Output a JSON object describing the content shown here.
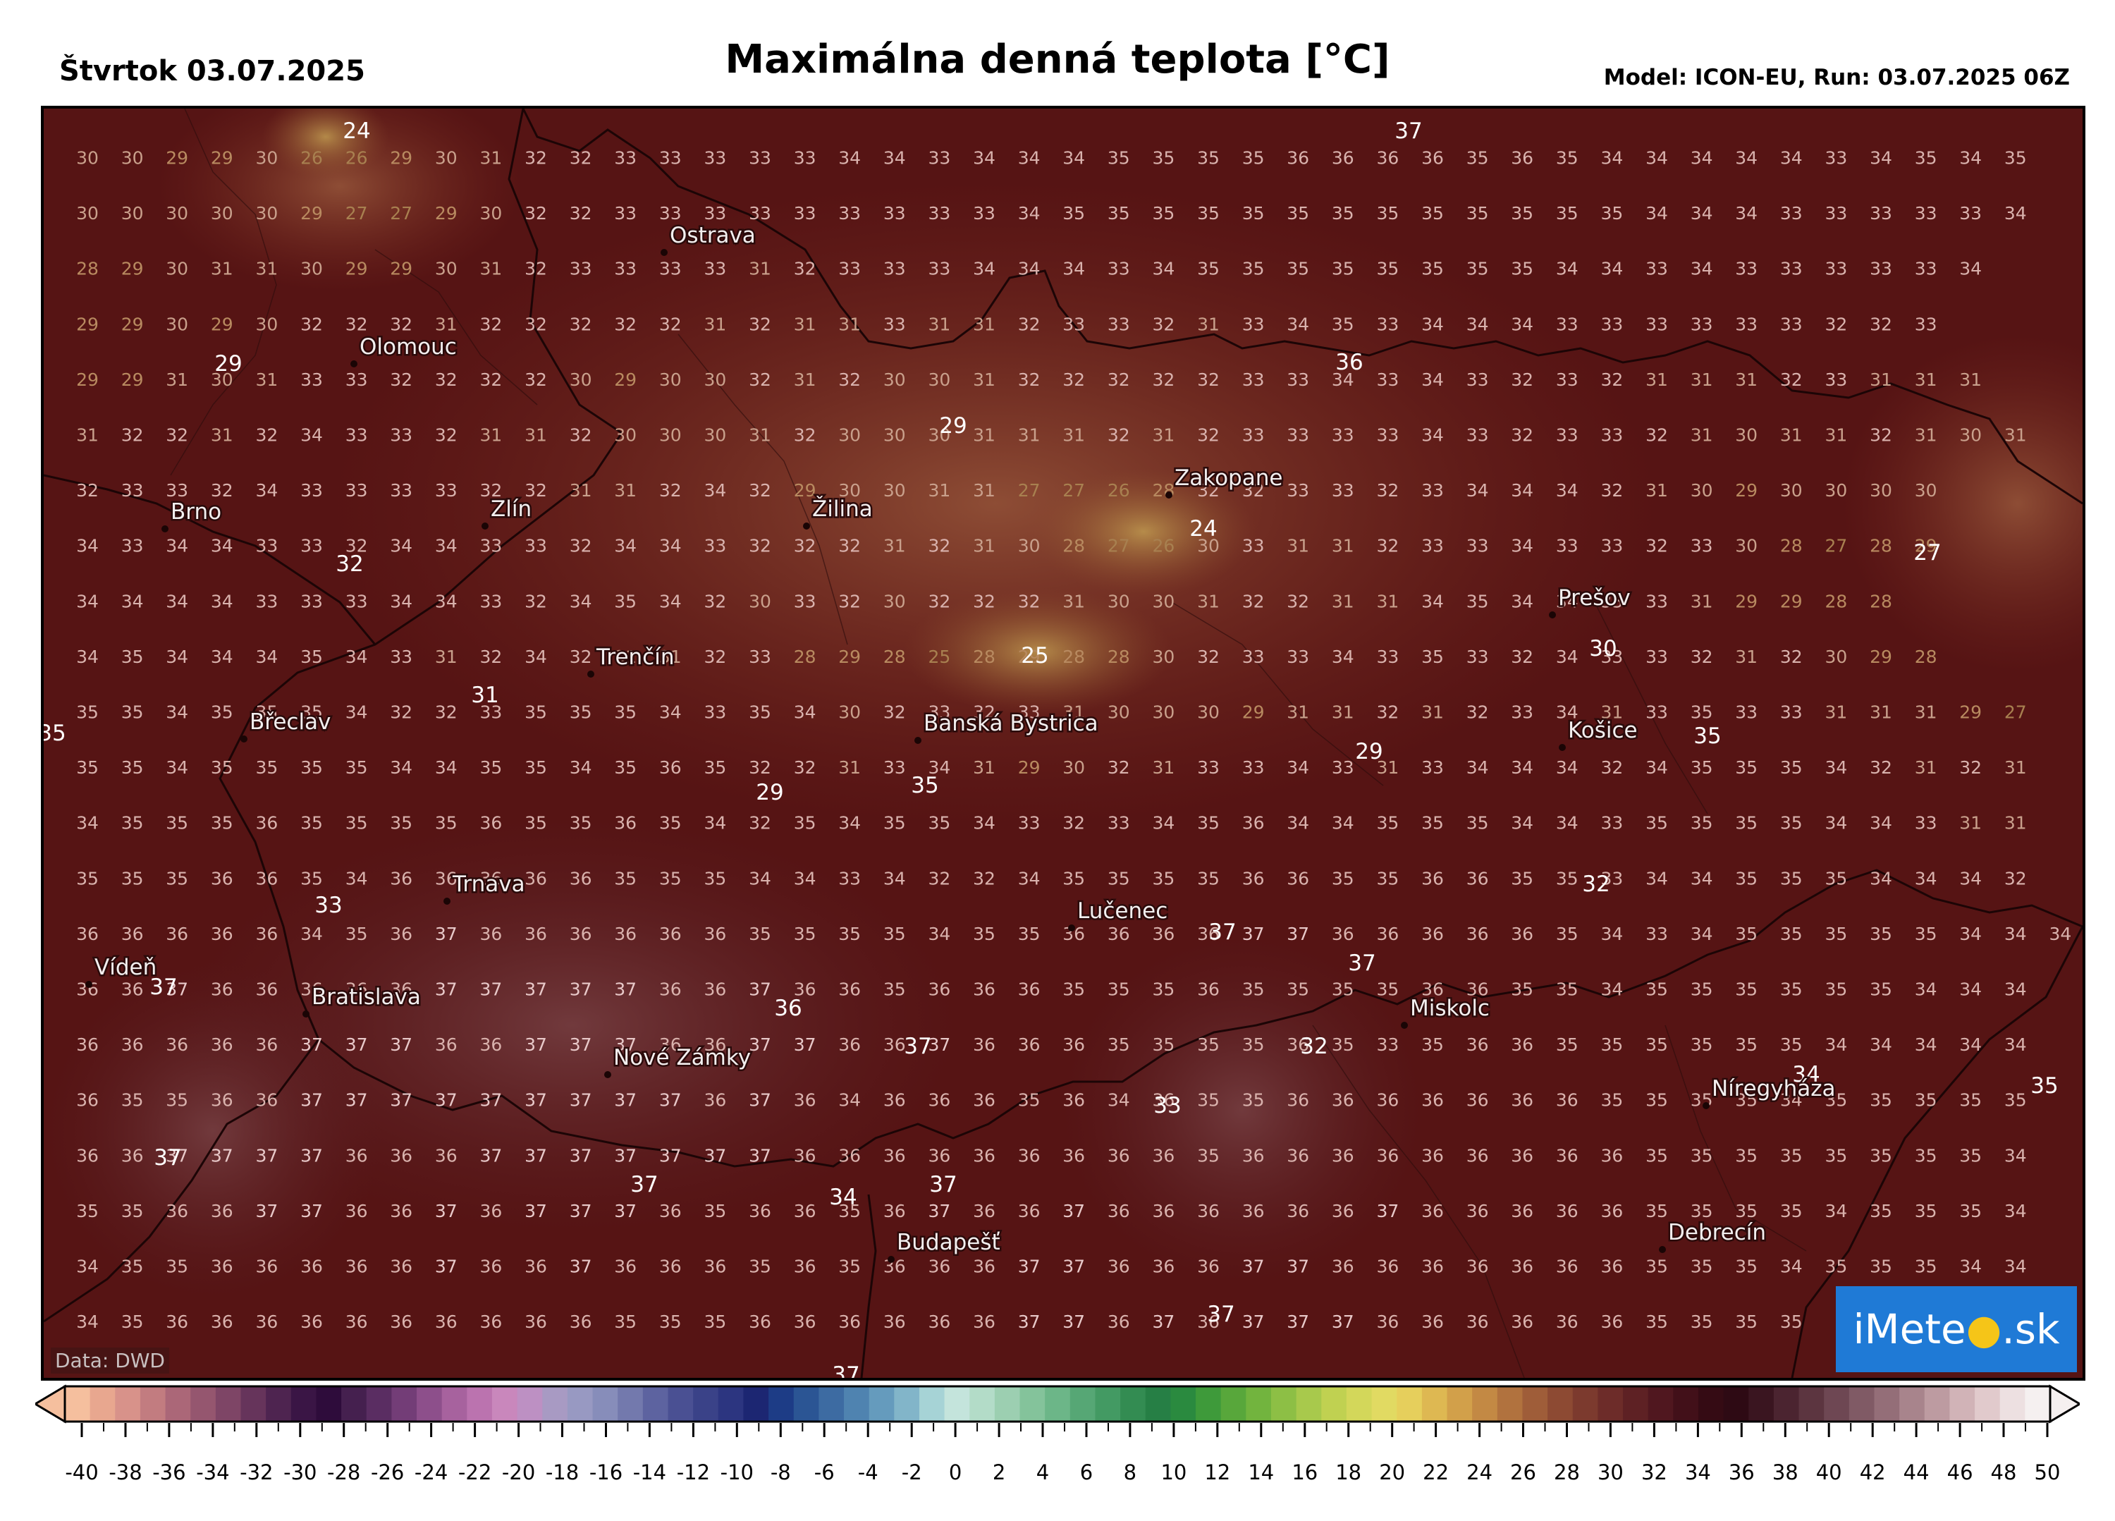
{
  "header": {
    "date": "Štvrtok 03.07.2025",
    "title": "Maximálna denná teplota [°C]",
    "model": "Model: ICON-EU, Run: 03.07.2025 06Z"
  },
  "map": {
    "data_source": "Data: DWD",
    "logo": {
      "left": "iMete",
      "sun": "●",
      "right": ".sk"
    },
    "grid_columns": 45,
    "grid_rows": [
      "30 30 29 29 30 26 26 29 30 31 32 32 33 33 33 33 33 34 34 33 34 34 34 35 35 35 35 36 36 36 36 35 36 35 34 34 34 34 34 33 34 35 34 35",
      "30 30 30 30 30 29 27 27 29 30 32 32 33 33 33 33 33 33 33 33 33 34 35 35 35 35 35 35 35 35 35 35 35 35 35 34 34 34 33 33 33 33 33 34",
      "28 29 30 31 31 30 29 29 30 31 32 33 33 33 33 31 32 33 33 33 34 34 34 33 34 35 35 35 35 35 35 35 35 34 34 33 34 33 33 33 33 33 34",
      "29 29 30 29 30 32 32 32 31 32 32 32 32 32 31 32 31 31 33 31 31 32 33 33 32 31 33 34 35 33 34 34 34 33 33 33 33 33 33 32 32 33",
      "29 29 31 30 31 33 33 32 32 32 32 30 29 30 30 32 31 32 30 30 31 32 32 32 32 32 33 33 34 33 34 33 32 33 32 31 31 31 32 33 31 31 31",
      "31 32 32 31 32 34 33 33 32 31 31 32 30 30 30 31 32 30 30 30 31 31 31 32 31 32 33 33 33 33 34 33 32 33 33 32 31 30 31 31 32 31 30 31",
      "32 33 33 32 34 33 33 33 33 32 32 31 31 32 34 32 29 30 30 31 31 27 27 26 28 32 32 33 33 32 33 34 34 34 32 31 30 29 30 30 30 30",
      "34 33 34 34 33 33 32 34 34 33 33 32 34 34 33 32 32 32 31 32 31 30 28 27 26 30 33 31 31 32 33 33 34 33 33 32 33 30 28 27 28 29",
      "34 34 34 34 33 33 33 34 34 33 32 34 35 34 32 30 33 32 30 32 32 32 31 30 30 31 32 32 31 31 34 35 34 34 33 33 31 29 29 28 28",
      "34 35 34 34 34 35 34 33 31 32 34 32 31 31 32 33 28 29 28 25 28 29 28 28 30 32 33 33 34 33 35 33 32 34 33 33 32 31 32 30 29 28",
      "35 35 34 35 35 35 34 32 32 33 35 35 35 34 33 35 34 30 32 33 32 33 31 30 30 30 29 31 31 32 31 32 33 34 31 33 35 33 33 31 31 31 29 27",
      "35 35 34 35 35 35 35 34 34 35 35 34 35 36 35 32 32 31 33 34 31 29 30 32 31 33 33 34 33 31 33 34 34 34 32 34 35 35 35 34 32 31 32 31",
      "34 35 35 35 36 35 35 35 35 36 35 35 36 35 34 32 35 34 35 35 34 33 32 33 34 35 36 34 34 35 35 35 34 34 33 35 35 35 35 34 34 33 31 31",
      "35 35 35 36 36 35 34 36 36 36 36 36 35 35 35 34 34 33 34 32 32 34 35 35 35 35 36 36 35 35 36 36 35 35 33 34 34 35 35 35 34 34 34 32",
      "36 36 36 36 36 34 35 36 37 36 36 36 36 36 36 35 35 35 35 34 35 35 36 36 36 36 37 37 36 36 36 36 36 35 34 33 34 35 35 35 35 35 34 34 34",
      "36 36 37 36 36 36 36 36 37 37 37 37 37 36 36 37 36 36 35 36 36 36 35 35 35 36 35 35 35 35 36 36 35 35 34 35 35 35 35 35 35 34 34 34",
      "36 36 36 36 36 37 37 37 36 36 37 37 37 36 36 37 37 36 36 37 36 36 36 35 35 35 35 36 35 33 35 36 36 35 35 35 35 35 35 34 34 34 34 34",
      "36 35 35 36 36 37 37 37 37 37 37 37 37 37 36 37 36 34 36 36 36 35 36 34 36 35 35 36 36 36 36 36 36 36 35 35 35 35 34 35 35 35 35 35",
      "36 36 37 37 37 37 36 36 36 37 37 37 37 37 37 37 36 36 36 36 36 36 36 36 36 35 36 36 36 36 36 36 36 36 36 35 35 35 35 35 35 35 35 34",
      "35 35 36 36 37 37 36 36 37 36 37 37 37 36 35 36 36 35 36 37 36 36 37 36 36 36 36 36 36 37 36 36 36 36 36 35 35 35 35 34 35 35 35 34",
      "34 35 35 36 36 36 36 36 37 36 36 37 36 36 36 35 36 35 36 36 36 37 37 36 36 36 37 37 36 36 36 36 36 36 36 35 35 35 34 35 35 35 34 34",
      "34 35 36 36 36 36 36 36 36 36 36 36 35 35 35 36 36 36 36 36 36 37 37 36 37 36 37 37 37 36 36 36 36 36 36 35 35 35 35"
    ],
    "callouts": [
      "24",
      "37",
      "36",
      "29",
      "29",
      "32",
      "31",
      "35",
      "25",
      "24",
      "27",
      "30",
      "29",
      "35",
      "35",
      "29",
      "33",
      "32",
      "37",
      "37",
      "36",
      "37",
      "37",
      "32",
      "34",
      "33",
      "37",
      "37",
      "34",
      "37",
      "35",
      "37",
      "37"
    ],
    "cities": [
      "Ostrava",
      "Olomouc",
      "Brno",
      "Zlín",
      "Žilina",
      "Zakopane",
      "Prešov",
      "Trenčín",
      "Břeclav",
      "Banská Bystrica",
      "Košice",
      "Trnava",
      "Lučenec",
      "Vídeň",
      "Bratislava",
      "Miskolc",
      "Nové Zámky",
      "Nírеgyháza",
      "Budapešť",
      "Debrecín"
    ]
  },
  "colorbar": {
    "ticks": [
      "-40",
      "-38",
      "-36",
      "-34",
      "-32",
      "-30",
      "-28",
      "-26",
      "-24",
      "-22",
      "-20",
      "-18",
      "-16",
      "-14",
      "-12",
      "-10",
      "-8",
      "-6",
      "-4",
      "-2",
      "0",
      "2",
      "4",
      "6",
      "8",
      "10",
      "12",
      "14",
      "16",
      "18",
      "20",
      "22",
      "24",
      "26",
      "28",
      "30",
      "32",
      "34",
      "36",
      "38",
      "40",
      "42",
      "44",
      "46",
      "48",
      "50"
    ],
    "colors": [
      "#f5bf9e",
      "#e8a78f",
      "#d8928a",
      "#c27c80",
      "#ab6778",
      "#95566f",
      "#7e4566",
      "#66345b",
      "#4e2450",
      "#3a1545",
      "#2e0c3b",
      "#45204f",
      "#5a2d62",
      "#733d77",
      "#8d4f8b",
      "#a7629e",
      "#bb73af",
      "#c987bc",
      "#bd90c3",
      "#a89ac3",
      "#9899c2",
      "#878dba",
      "#7379ad",
      "#5d63a0",
      "#4a5093",
      "#3a4288",
      "#2c3580",
      "#1c2672",
      "#1d3c86",
      "#2b5594",
      "#3d6ba2",
      "#4f83b0",
      "#659bbd",
      "#82b5c9",
      "#a6d3d6",
      "#c4e4dc",
      "#b3dcc8",
      "#9ccfb1",
      "#84c39b",
      "#6cb688",
      "#56a775",
      "#439a63",
      "#338c52",
      "#267f45",
      "#2a8a3f",
      "#3e9a3a",
      "#58a73b",
      "#72b43e",
      "#8dbf45",
      "#a8c94c",
      "#c0d151",
      "#d3d75a",
      "#e1da62",
      "#e6cf5c",
      "#deb852",
      "#d2a04a",
      "#c38944",
      "#b1723e",
      "#9f5d39",
      "#8d4a33",
      "#7c3a2e",
      "#6d2c29",
      "#5e2124",
      "#50171f",
      "#421019",
      "#350b14",
      "#2e0a14",
      "#3a1520",
      "#4b2430",
      "#5c3540",
      "#6e4753",
      "#805a65",
      "#946e78",
      "#a8848c",
      "#bd9ba1",
      "#d1b3b7",
      "#e1cacc",
      "#ede0e1",
      "#f5f0f0"
    ]
  }
}
